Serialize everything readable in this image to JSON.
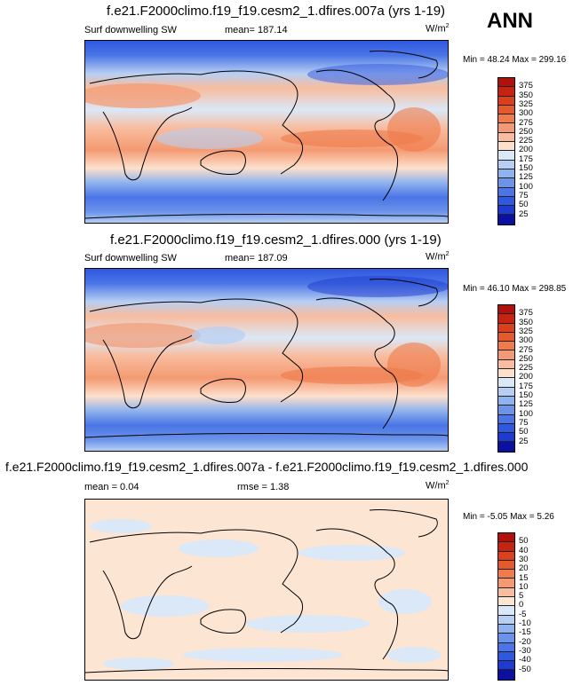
{
  "season": "ANN",
  "panels": [
    {
      "title": "f.e21.F2000climo.f19_f19.cesm2_1.dfires.007a (yrs 1-19)",
      "left_label": "Surf downwelling SW",
      "center_label": "mean= 187.14",
      "units": "W/m",
      "units_sup": "2",
      "minmax": "Min = 48.24 Max = 299.16",
      "colorbar": {
        "labels": [
          "375",
          "350",
          "325",
          "300",
          "275",
          "250",
          "225",
          "200",
          "175",
          "150",
          "125",
          "100",
          "75",
          "50",
          "25"
        ],
        "colors": [
          "#b2100d",
          "#c62410",
          "#d9401b",
          "#e55a2c",
          "#ef7a4a",
          "#f49a72",
          "#f8bc9e",
          "#fde0cc",
          "#dbe8f8",
          "#b7cff3",
          "#8fb3ee",
          "#6b93ea",
          "#4b75e6",
          "#2f58e0",
          "#1d3bd0",
          "#0b10a0"
        ]
      }
    },
    {
      "title": "f.e21.F2000climo.f19_f19.cesm2_1.dfires.000 (yrs 1-19)",
      "left_label": "Surf downwelling SW",
      "center_label": "mean= 187.09",
      "units": "W/m",
      "units_sup": "2",
      "minmax": "Min = 46.10 Max = 298.85",
      "colorbar": {
        "labels": [
          "375",
          "350",
          "325",
          "300",
          "275",
          "250",
          "225",
          "200",
          "175",
          "150",
          "125",
          "100",
          "75",
          "50",
          "25"
        ],
        "colors": [
          "#b2100d",
          "#c62410",
          "#d9401b",
          "#e55a2c",
          "#ef7a4a",
          "#f49a72",
          "#f8bc9e",
          "#fde0cc",
          "#dbe8f8",
          "#b7cff3",
          "#8fb3ee",
          "#6b93ea",
          "#4b75e6",
          "#2f58e0",
          "#1d3bd0",
          "#0b10a0"
        ]
      }
    },
    {
      "title": "f.e21.F2000climo.f19_f19.cesm2_1.dfires.007a - f.e21.F2000climo.f19_f19.cesm2_1.dfires.000",
      "left_label": "mean =  0.04",
      "center_label": "rmse =  1.38",
      "units": "W/m",
      "units_sup": "2",
      "minmax": "Min = -5.05 Max =  5.26",
      "colorbar": {
        "labels": [
          "50",
          "40",
          "30",
          "20",
          "15",
          "10",
          "5",
          "0",
          "-5",
          "-10",
          "-15",
          "-20",
          "-30",
          "-40",
          "-50"
        ],
        "colors": [
          "#b2100d",
          "#c62410",
          "#d9401b",
          "#e55a2c",
          "#ef7a4a",
          "#f49a72",
          "#f8bc9e",
          "#fde5d3",
          "#dbe8f8",
          "#b7cff3",
          "#8fb3ee",
          "#6b93ea",
          "#4b75e6",
          "#2f58e0",
          "#1d3bd0",
          "#0b10a0"
        ]
      }
    }
  ]
}
